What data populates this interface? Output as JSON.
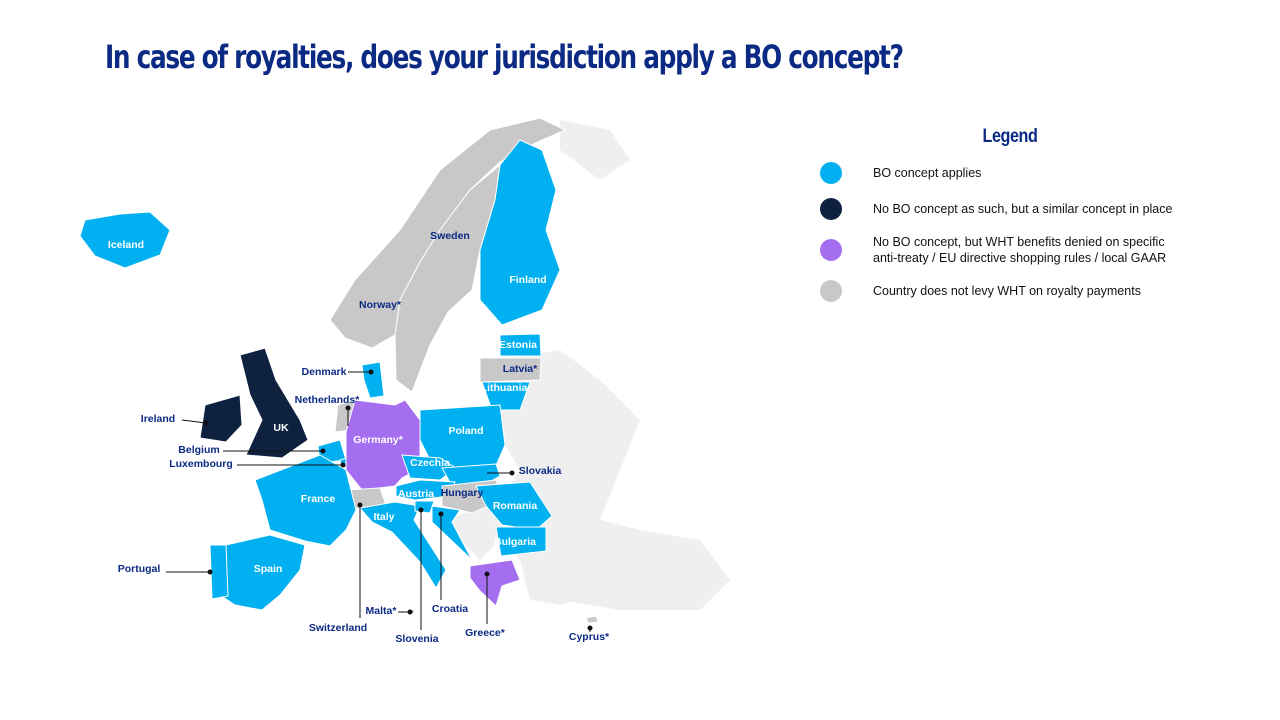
{
  "title": "In case of royalties, does your jurisdiction apply a BO concept?",
  "legend": {
    "title": "Legend",
    "items": [
      {
        "key": "bo",
        "label": "BO concept applies",
        "color": "#00b0f0"
      },
      {
        "key": "similar",
        "label": "No BO concept as such, but a similar concept in place",
        "color": "#0e2240"
      },
      {
        "key": "antiabuse",
        "label": "No BO concept, but WHT benefits denied on specific anti-treaty / EU directive shopping rules / local GAAR",
        "color": "#a56ef0"
      },
      {
        "key": "nowht",
        "label": "Country does not levy WHT on royalty payments",
        "color": "#c8c8c8"
      }
    ]
  },
  "countries": [
    {
      "id": "iceland",
      "name": "Iceland",
      "status": "bo"
    },
    {
      "id": "norway",
      "name": "Norway*",
      "status": "nowht"
    },
    {
      "id": "sweden",
      "name": "Sweden",
      "status": "nowht"
    },
    {
      "id": "finland",
      "name": "Finland",
      "status": "bo"
    },
    {
      "id": "estonia",
      "name": "Estonia",
      "status": "bo"
    },
    {
      "id": "latvia",
      "name": "Latvia*",
      "status": "nowht"
    },
    {
      "id": "lithuania",
      "name": "Lithuania",
      "status": "bo"
    },
    {
      "id": "denmark",
      "name": "Denmark",
      "status": "bo"
    },
    {
      "id": "uk",
      "name": "UK",
      "status": "similar"
    },
    {
      "id": "ireland",
      "name": "Ireland",
      "status": "similar"
    },
    {
      "id": "netherlands",
      "name": "Netherlands*",
      "status": "nowht"
    },
    {
      "id": "belgium",
      "name": "Belgium",
      "status": "bo"
    },
    {
      "id": "luxembourg",
      "name": "Luxembourg",
      "status": "bo"
    },
    {
      "id": "germany",
      "name": "Germany*",
      "status": "antiabuse"
    },
    {
      "id": "poland",
      "name": "Poland",
      "status": "bo"
    },
    {
      "id": "czechia",
      "name": "Czechia",
      "status": "bo"
    },
    {
      "id": "slovakia",
      "name": "Slovakia",
      "status": "bo"
    },
    {
      "id": "austria",
      "name": "Austria",
      "status": "bo"
    },
    {
      "id": "hungary",
      "name": "Hungary",
      "status": "nowht"
    },
    {
      "id": "switzerland",
      "name": "Switzerland",
      "status": "nowht"
    },
    {
      "id": "france",
      "name": "France",
      "status": "bo"
    },
    {
      "id": "spain",
      "name": "Spain",
      "status": "bo"
    },
    {
      "id": "portugal",
      "name": "Portugal",
      "status": "bo"
    },
    {
      "id": "italy",
      "name": "Italy",
      "status": "bo"
    },
    {
      "id": "slovenia",
      "name": "Slovenia",
      "status": "bo"
    },
    {
      "id": "croatia",
      "name": "Croatia",
      "status": "bo"
    },
    {
      "id": "romania",
      "name": "Romania",
      "status": "bo"
    },
    {
      "id": "bulgaria",
      "name": "Bulgaria",
      "status": "bo"
    },
    {
      "id": "greece",
      "name": "Greece*",
      "status": "antiabuse"
    },
    {
      "id": "malta",
      "name": "Malta*",
      "status": "nowht"
    },
    {
      "id": "cyprus",
      "name": "Cyprus*",
      "status": "nowht"
    }
  ],
  "colors": {
    "background_land": "#efefef",
    "title": "#0b2a84",
    "inside_label": "#ffffff",
    "outside_label": "#0b2a84"
  }
}
